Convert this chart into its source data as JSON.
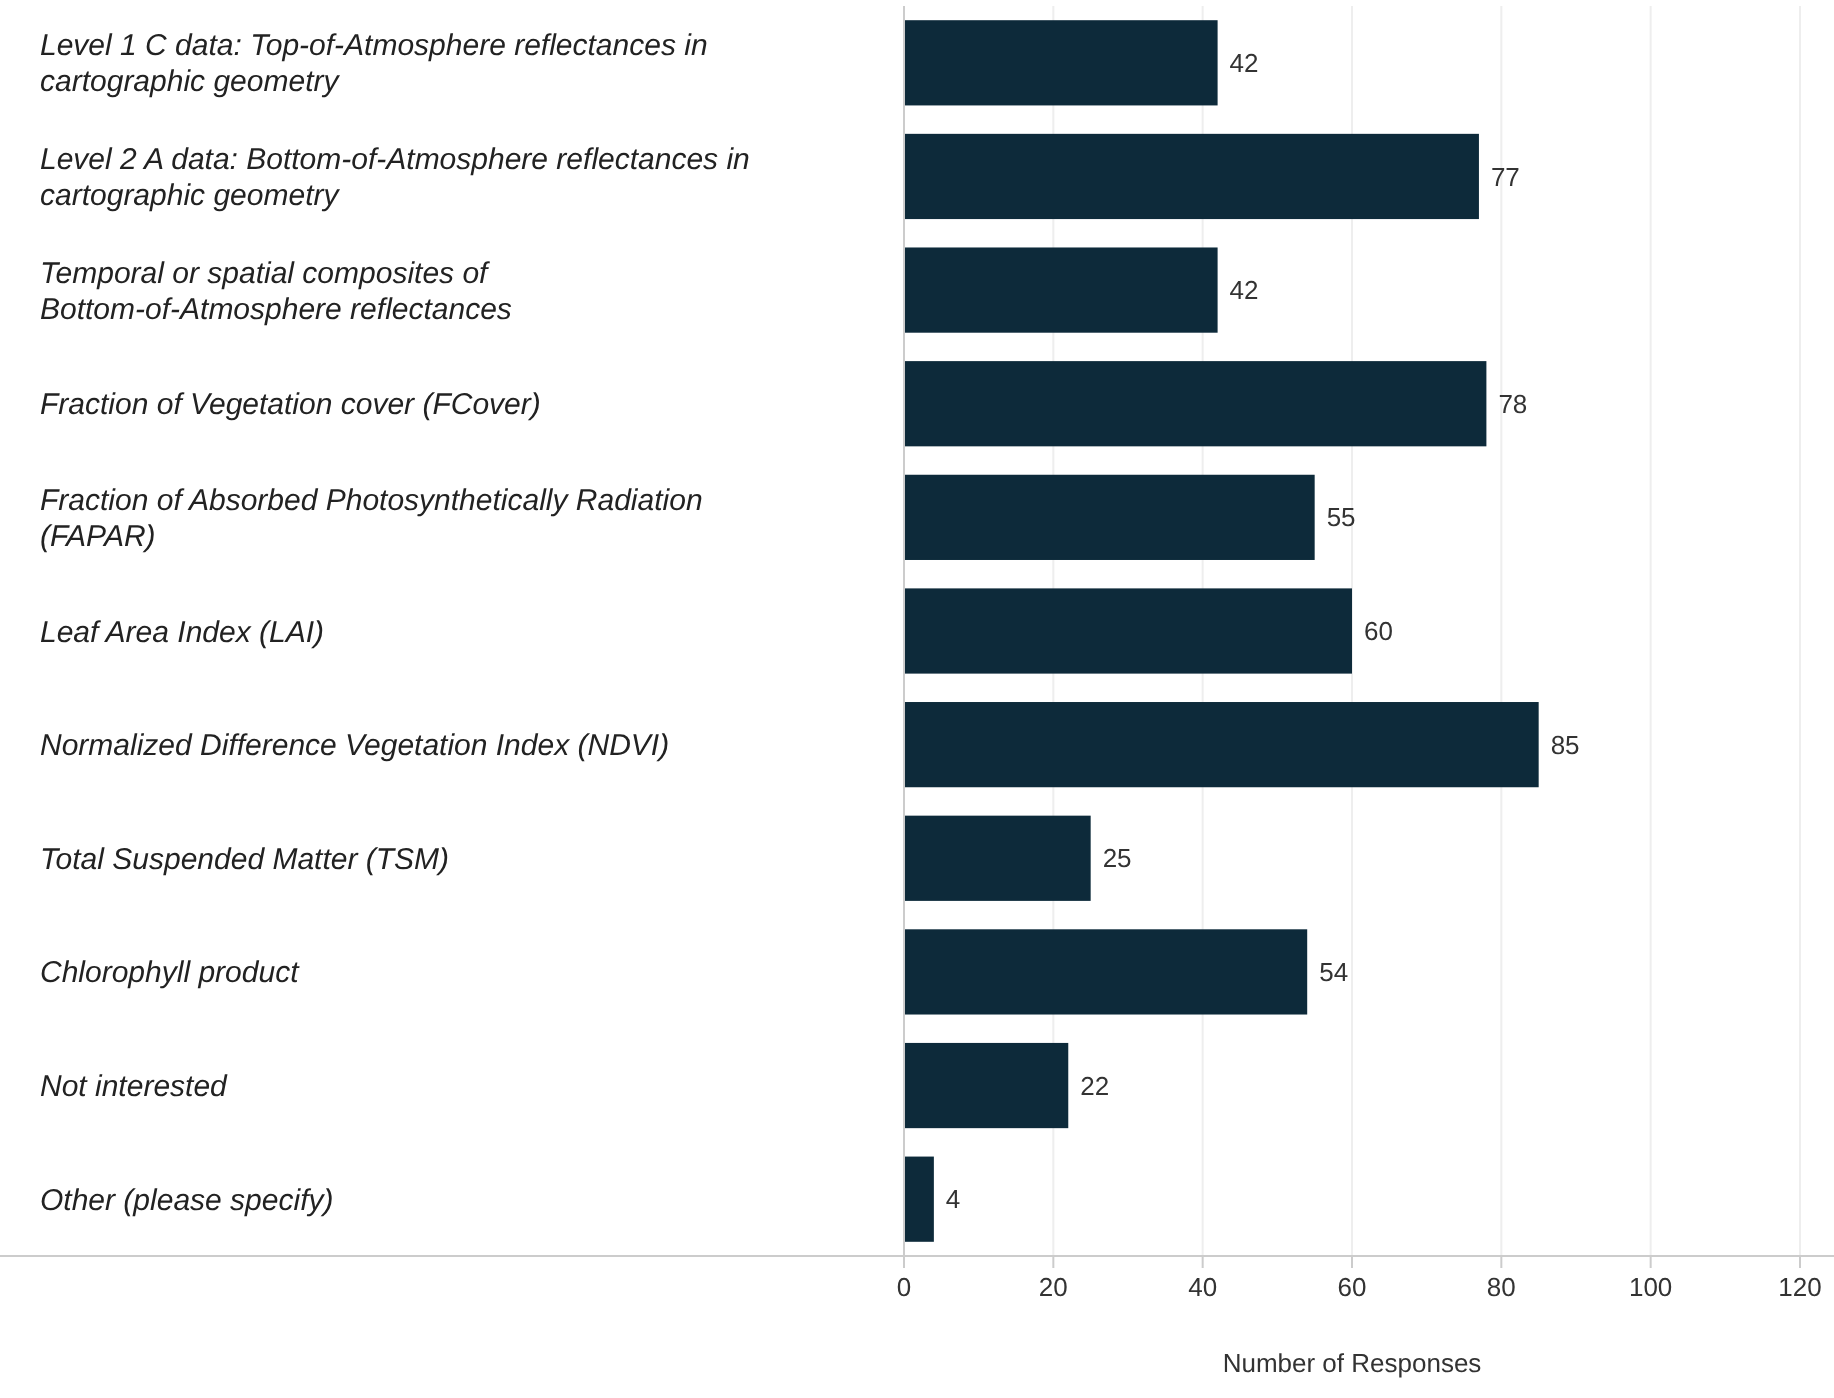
{
  "chart_data": {
    "type": "bar",
    "orientation": "horizontal",
    "xlabel": "Number of Responses",
    "categories": [
      "Level 1 C data: Top-of-Atmosphere reflectances in cartographic geometry",
      "Level 2 A data: Bottom-of-Atmosphere reflectances in cartographic geometry",
      "Temporal or spatial composites of Bottom-of-Atmosphere reflectances",
      "Fraction of Vegetation cover (FCover)",
      "Fraction of Absorbed Photosynthetically Radiation (FAPAR)",
      "Leaf Area Index (LAI)",
      "Normalized Difference Vegetation Index (NDVI)",
      "Total Suspended Matter (TSM)",
      "Chlorophyll product",
      "Not interested",
      "Other (please specify)"
    ],
    "values": [
      42,
      77,
      42,
      78,
      55,
      60,
      85,
      25,
      54,
      22,
      4
    ],
    "color": "#0d2a3a",
    "xlim": [
      0,
      120
    ],
    "xticks": [
      0,
      20,
      40,
      60,
      80,
      100,
      120
    ],
    "grid": "x",
    "data_labels": true
  }
}
